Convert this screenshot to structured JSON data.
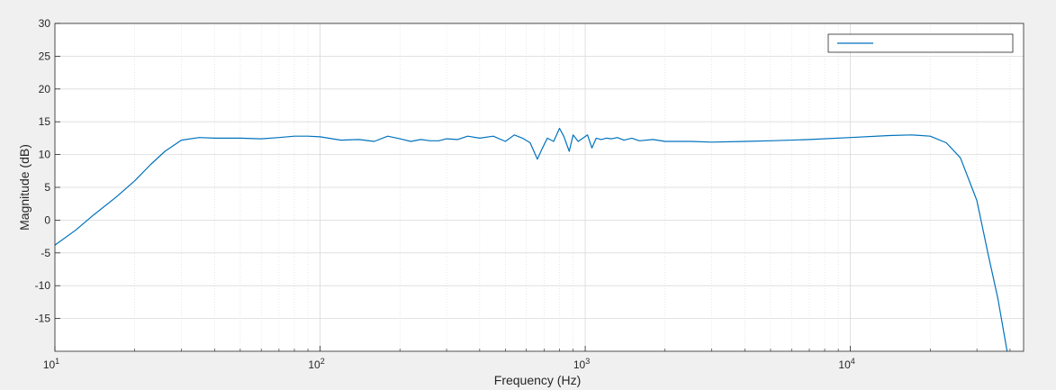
{
  "chart_data": {
    "type": "line",
    "title": "",
    "xlabel": "Frequency (Hz)",
    "ylabel": "Magnitude (dB)",
    "xscale": "log",
    "xlim": [
      10,
      45000
    ],
    "ylim": [
      -20,
      30
    ],
    "x_tick_labels": [
      {
        "value": 10,
        "base": "10",
        "exp": "1"
      },
      {
        "value": 100,
        "base": "10",
        "exp": "2"
      },
      {
        "value": 1000,
        "base": "10",
        "exp": "3"
      },
      {
        "value": 10000,
        "base": "10",
        "exp": "4"
      }
    ],
    "y_ticks": [
      30,
      25,
      20,
      15,
      10,
      5,
      0,
      -5,
      -10,
      -15
    ],
    "grid": true,
    "minor_grid_x": true,
    "legend": {
      "placement": "top-right",
      "entries": [
        ""
      ]
    },
    "colors": {
      "series": "#0072bd",
      "axes": "#262626",
      "grid": "#d9d9d9",
      "background": "#ffffff",
      "figure": "#f0f0f0"
    },
    "series": [
      {
        "color": "#0072bd",
        "x": [
          10,
          12,
          14,
          17,
          20,
          23,
          26,
          30,
          35,
          40,
          50,
          60,
          70,
          80,
          90,
          100,
          120,
          140,
          160,
          180,
          200,
          220,
          240,
          260,
          280,
          300,
          330,
          360,
          400,
          450,
          500,
          540,
          580,
          620,
          660,
          690,
          720,
          760,
          800,
          830,
          870,
          900,
          940,
          980,
          1020,
          1060,
          1100,
          1150,
          1200,
          1260,
          1320,
          1400,
          1500,
          1600,
          1800,
          2000,
          2500,
          3000,
          4000,
          5000,
          7000,
          10000,
          14000,
          17000,
          20000,
          23000,
          26000,
          30000,
          33000,
          36000,
          39000
        ],
        "y": [
          -3.8,
          -1.5,
          0.8,
          3.5,
          6.0,
          8.5,
          10.5,
          12.2,
          12.6,
          12.5,
          12.5,
          12.4,
          12.6,
          12.8,
          12.8,
          12.7,
          12.2,
          12.3,
          12.0,
          12.8,
          12.4,
          12.0,
          12.3,
          12.1,
          12.1,
          12.4,
          12.3,
          12.8,
          12.5,
          12.8,
          12.0,
          13.0,
          12.5,
          11.8,
          9.3,
          11.0,
          12.5,
          12.0,
          14.0,
          12.8,
          10.5,
          13.0,
          12.0,
          12.5,
          13.0,
          11.0,
          12.5,
          12.3,
          12.5,
          12.4,
          12.6,
          12.2,
          12.5,
          12.1,
          12.3,
          12.0,
          12.0,
          11.9,
          12.0,
          12.1,
          12.3,
          12.6,
          12.9,
          13.0,
          12.8,
          11.8,
          9.5,
          3.0,
          -5.0,
          -12.0,
          -20.0
        ]
      }
    ]
  }
}
